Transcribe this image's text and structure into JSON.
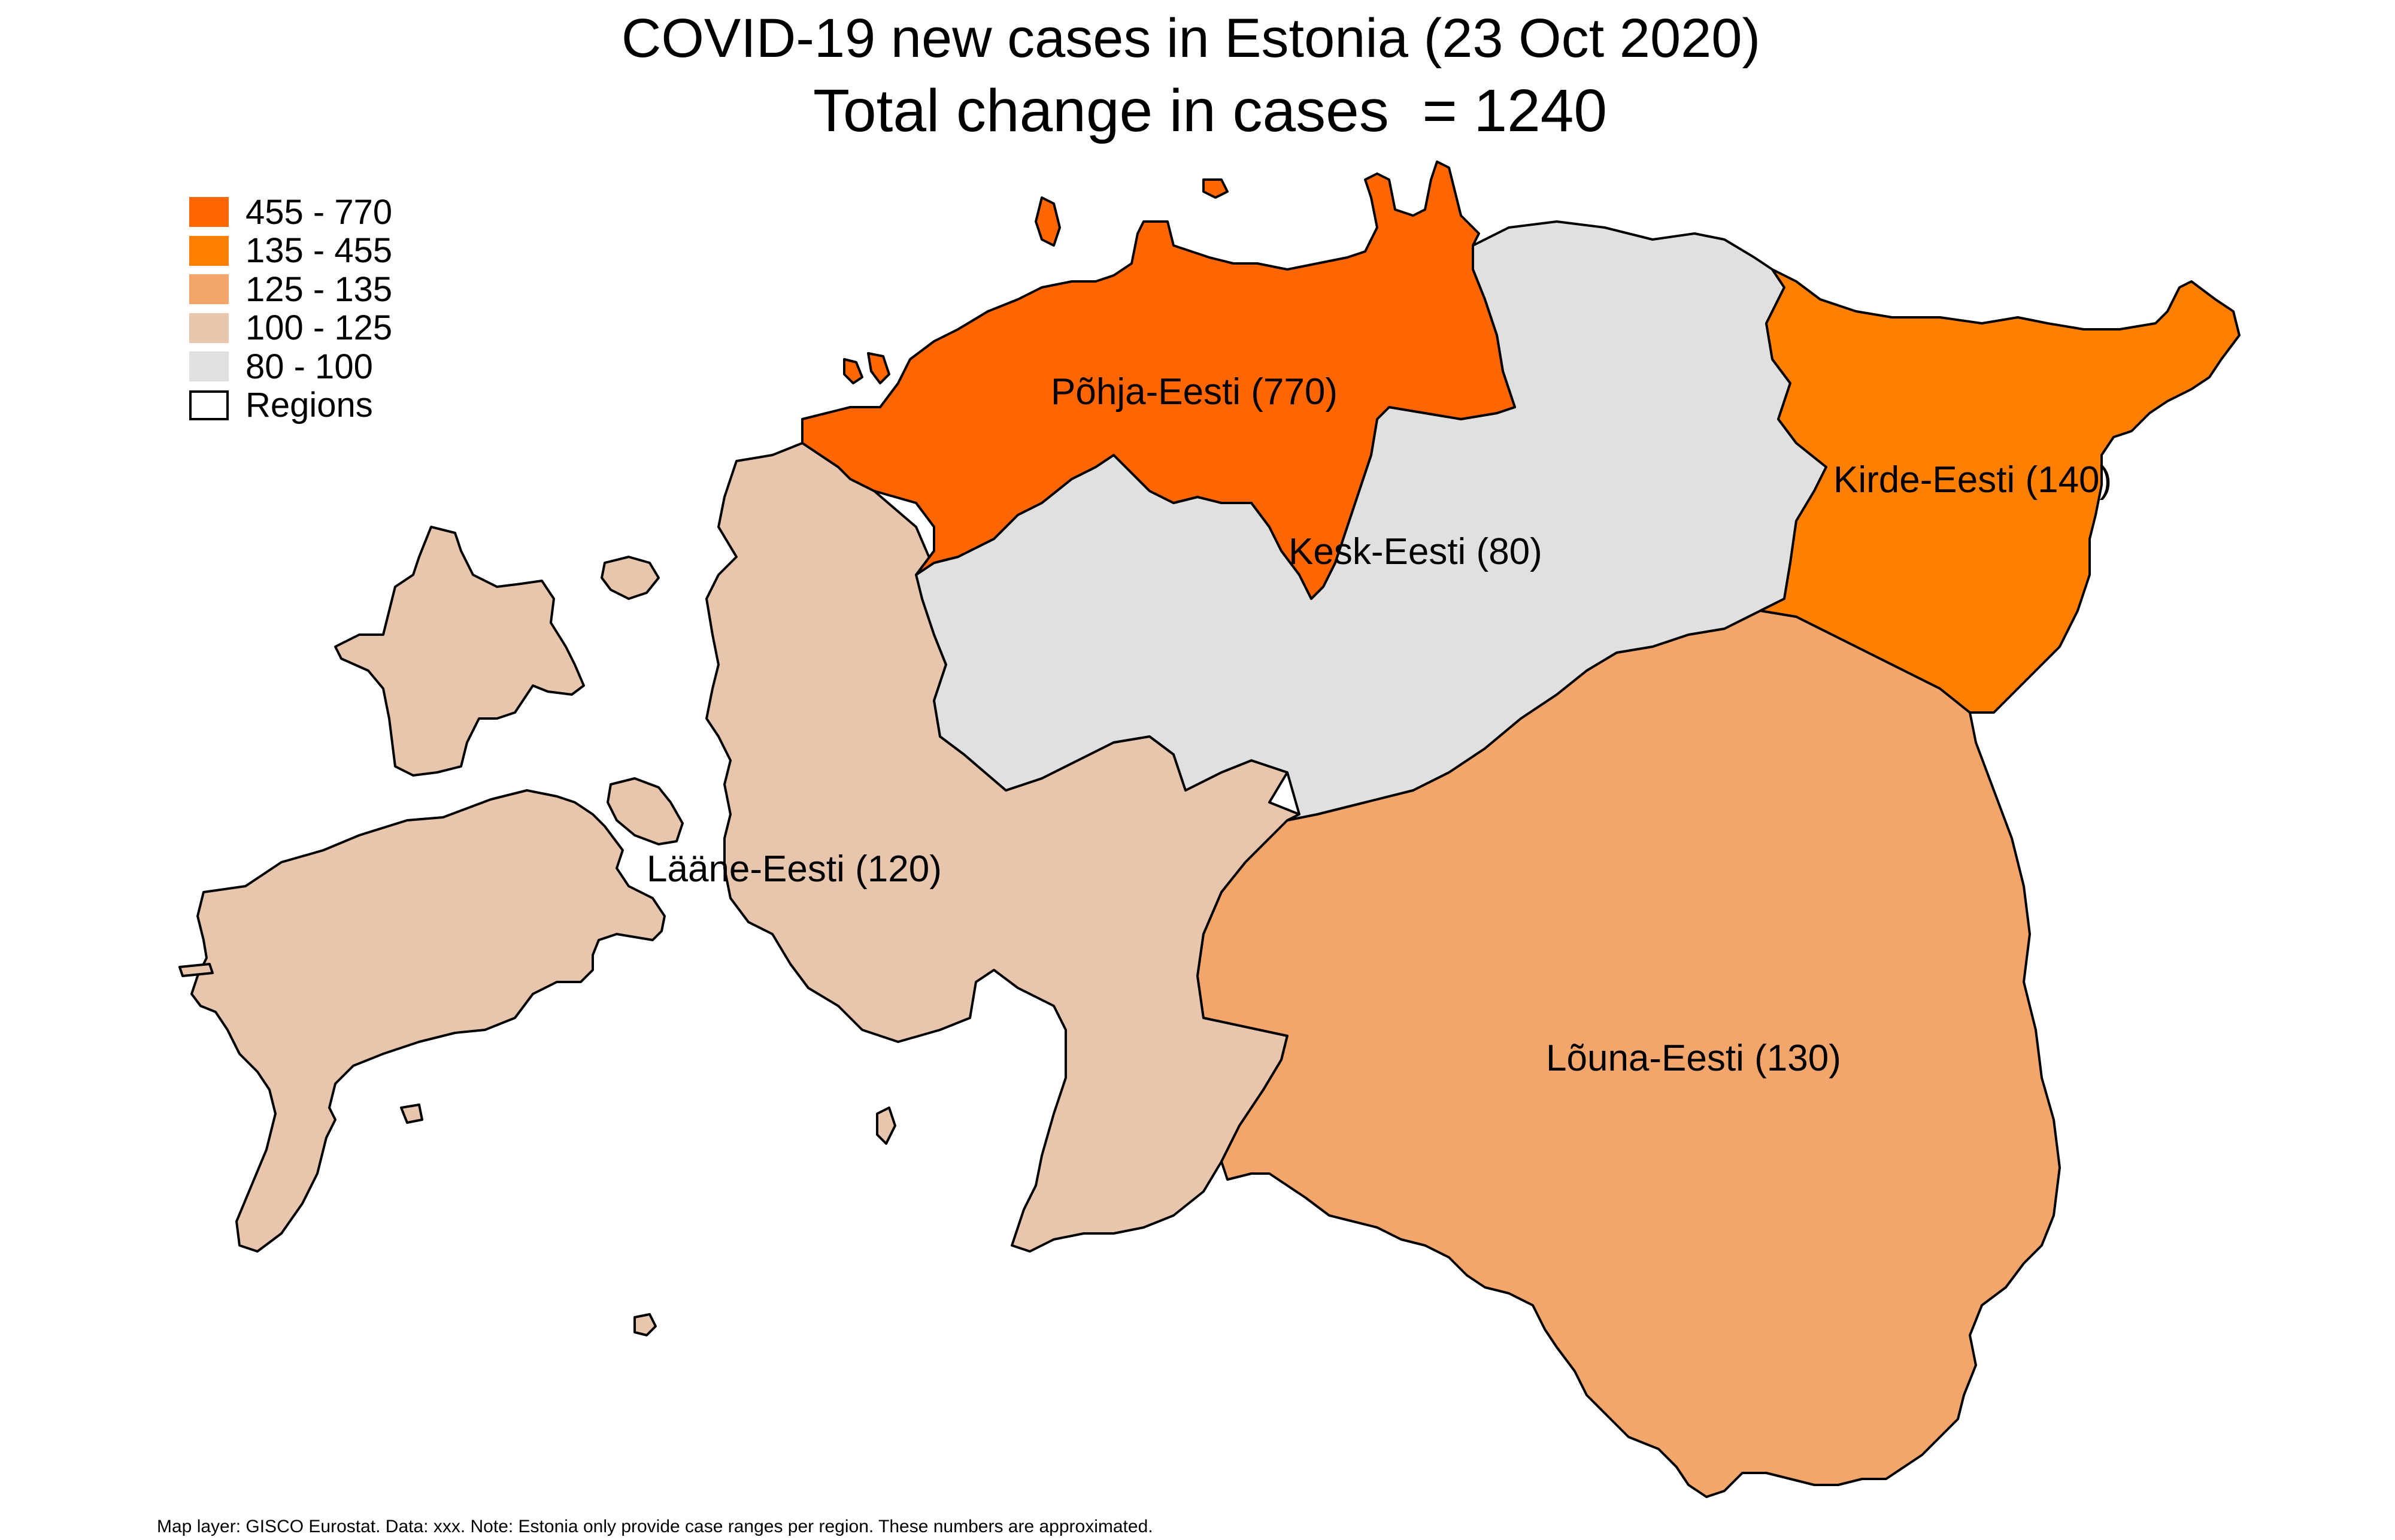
{
  "title": "COVID-19 new cases in Estonia (23 Oct 2020)",
  "subtitle": "Total change in cases  = 1240",
  "legend": {
    "items": [
      {
        "label": "455 - 770",
        "color": "#FF6600"
      },
      {
        "label": "135 - 455",
        "color": "#FF8000"
      },
      {
        "label": "125 - 135",
        "color": "#F2A66C"
      },
      {
        "label": "100 - 125",
        "color": "#E8C6AE"
      },
      {
        "label": "80 - 100",
        "color": "#E0E0E0"
      },
      {
        "label": "Regions",
        "color": "#FFFFFF"
      }
    ]
  },
  "regions": [
    {
      "id": "pohja",
      "name": "Põhja-Eesti",
      "label": "Põhja-Eesti (770)",
      "cases": 770,
      "color": "#FF6600"
    },
    {
      "id": "kirde",
      "name": "Kirde-Eesti",
      "label": "Kirde-Eesti (140)",
      "cases": 140,
      "color": "#FF8000"
    },
    {
      "id": "kesk",
      "name": "Kesk-Eesti",
      "label": "Kesk-Eesti (80)",
      "cases": 80,
      "color": "#E0E0E0"
    },
    {
      "id": "laane",
      "name": "Lääne-Eesti",
      "label": "Lääne-Eesti (120)",
      "cases": 120,
      "color": "#E8C6AE"
    },
    {
      "id": "louna",
      "name": "Lõuna-Eesti",
      "label": "Lõuna-Eesti (130)",
      "cases": 130,
      "color": "#F2A66C"
    }
  ],
  "footnote": "Map layer: GISCO Eurostat. Data: xxx. Note: Estonia only provide case ranges per region. These numbers are approximated."
}
